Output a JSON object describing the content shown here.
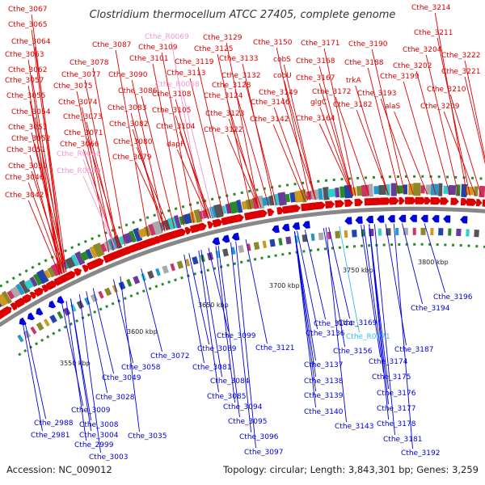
{
  "title": "Clostridium thermocellum ATCC 27405, complete genome",
  "footer": {
    "accession": "Accession: NC_009012",
    "summary": "Topology: circular; Length: 3,843,301 bp; Genes: 3,259"
  },
  "ticks": [
    "3550 kbp",
    "3600 kbp",
    "3650 kbp",
    "3700 kbp",
    "3750 kbp",
    "3800 kbp"
  ],
  "colors": {
    "forward": "#dd0000",
    "reverse": "#0000dd",
    "rna": "#ee99cc",
    "rna_reverse": "#33bbee",
    "backbone": "#888888"
  },
  "upper_labels": [
    "Cthe_3067",
    "Cthe_3065",
    "Cthe_3064",
    "Cthe_3063",
    "Cthe_3062",
    "Cthe_3057",
    "Cthe_3055",
    "Cthe_3054",
    "Cthe_3053",
    "Cthe_3052",
    "Cthe_3051",
    "Cthe_3050",
    "Cthe_3046",
    "Cthe_3042",
    "Cthe_3078",
    "Cthe_3077",
    "Cthe_3075",
    "Cthe_3074",
    "Cthe_3073",
    "Cthe_3071",
    "Cthe_3066",
    "Cthe_R0060",
    "Cthe_R0059",
    "Cthe_3087",
    "Cthe_3090",
    "Cthe_3086",
    "Cthe_3083",
    "Cthe_3082",
    "Cthe_3080",
    "Cthe_3079",
    "Cthe_R0069",
    "Cthe_3109",
    "Cthe_3101",
    "Cthe_R0068",
    "Cthe_3108",
    "Cthe_3105",
    "Cthe_3104",
    "dapF",
    "Cthe_3129",
    "Cthe_3125",
    "Cthe_3119",
    "Cthe_3113",
    "Cthe_3133",
    "Cthe_3132",
    "Cthe_3128",
    "Cthe_3124",
    "Cthe_3123",
    "Cthe_3122",
    "Cthe_3150",
    "cobS",
    "cobU",
    "Cthe_3149",
    "Cthe_3146",
    "Cthe_3142",
    "Cthe_3171",
    "Cthe_3168",
    "Cthe_3167",
    "Cthe_3172",
    "glgC",
    "Cthe_3164",
    "Cthe_3190",
    "Cthe_3188",
    "trkA",
    "Cthe_3182",
    "Cthe_3214",
    "Cthe_3211",
    "Cthe_3204",
    "Cthe_3202",
    "Cthe_3199",
    "Cthe_3193",
    "alaS",
    "Cthe_3222",
    "Cthe_3221",
    "Cthe_3210",
    "Cthe_3209"
  ],
  "lower_labels": [
    "Cthe_3196",
    "Cthe_3194",
    "Cthe_3169",
    "Cthe_3144",
    "Cthe_3136",
    "Cthe_R0071",
    "Cthe_3187",
    "Cthe_3156",
    "Cthe_3137",
    "Cthe_3174",
    "Cthe_3175",
    "Cthe_3138",
    "Cthe_3176",
    "Cthe_3139",
    "Cthe_3177",
    "Cthe_3140",
    "Cthe_3178",
    "Cthe_3143",
    "Cthe_3181",
    "Cthe_3192",
    "Cthe_3121",
    "Cthe_3099",
    "Cthe_3089",
    "Cthe_3072",
    "Cthe_3081",
    "Cthe_3058",
    "Cthe_3084",
    "Cthe_3049",
    "Cthe_3085",
    "Cthe_3028",
    "Cthe_3094",
    "Cthe_3009",
    "Cthe_3095",
    "Cthe_3008",
    "Cthe_2988",
    "Cthe_3004",
    "Cthe_3035",
    "Cthe_2981",
    "Cthe_3096",
    "Cthe_2999",
    "Cthe_3097",
    "Cthe_3003"
  ]
}
